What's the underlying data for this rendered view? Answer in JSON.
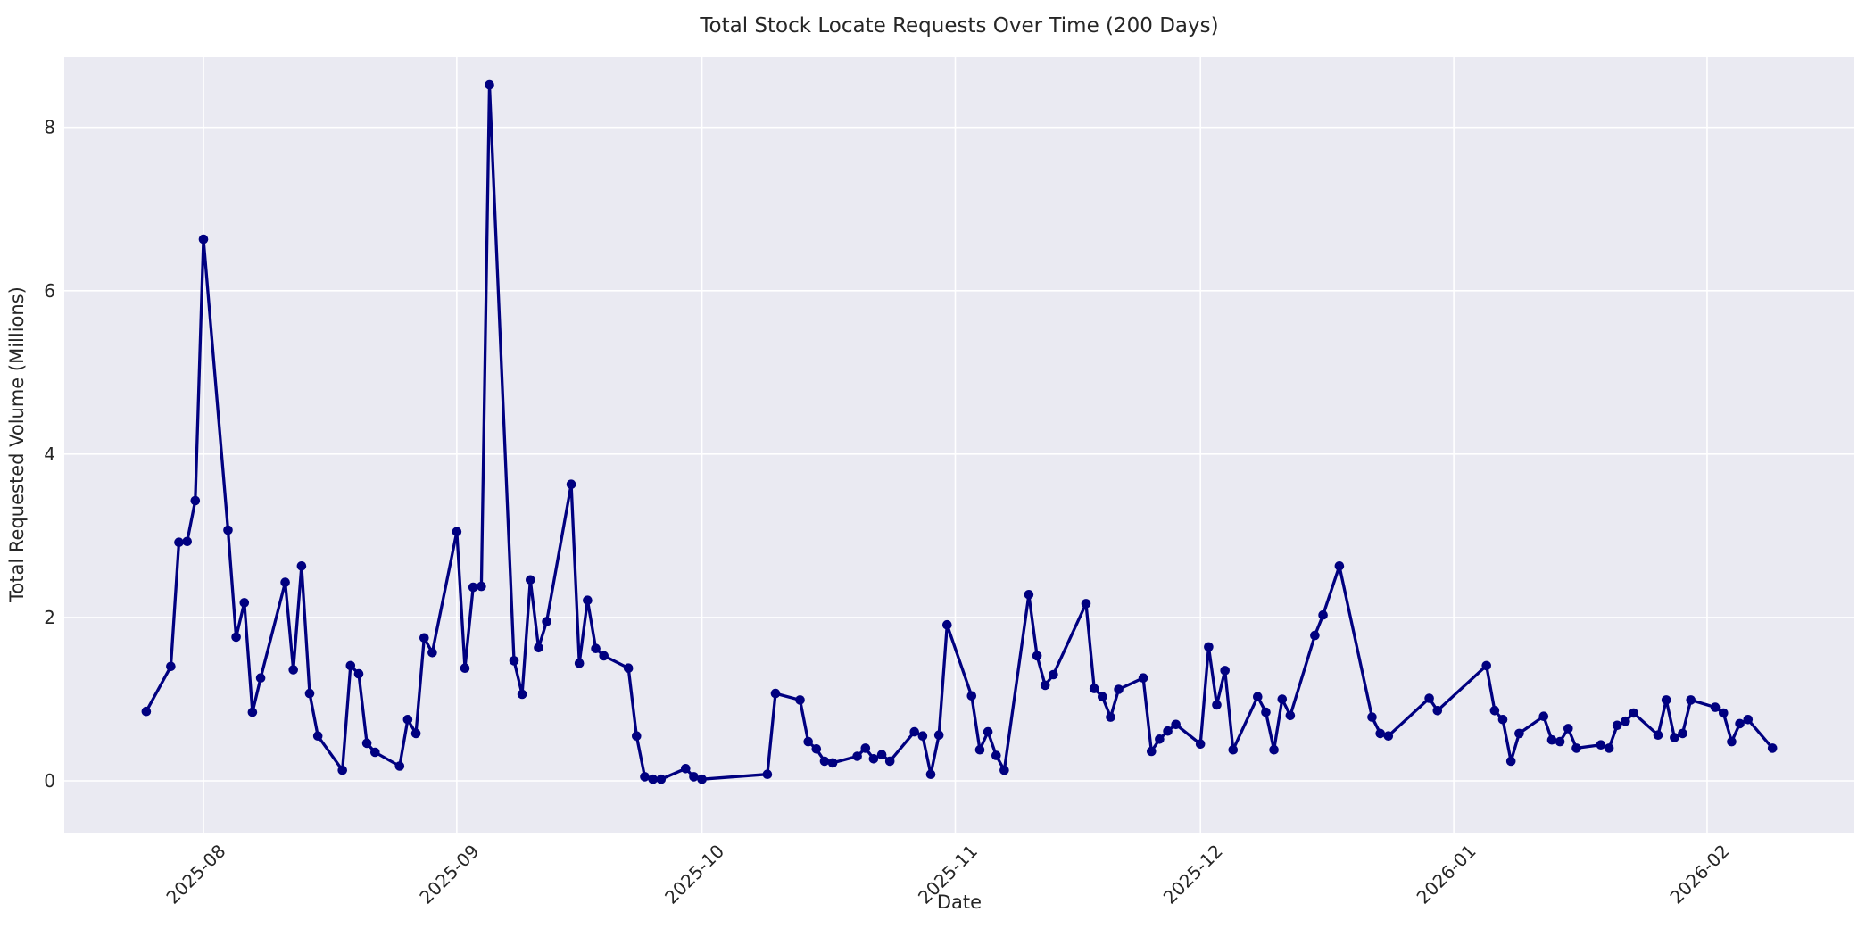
{
  "figure": {
    "title": "Total Stock Locate Requests Over Time (200 Days)"
  },
  "chart_data": {
    "type": "line",
    "title": "Total Stock Locate Requests Over Time (200 Days)",
    "xlabel": "Date",
    "ylabel": "Total Requested Volume (Millions)",
    "legend": false,
    "grid": true,
    "x_axis": {
      "tick_labels": [
        "2025-08",
        "2025-09",
        "2025-10",
        "2025-11",
        "2025-12",
        "2026-01",
        "2026-02"
      ],
      "tick_rotation_deg": 45,
      "range_dates": [
        "2025-07-15",
        "2026-02-20"
      ]
    },
    "y_axis": {
      "ticks": [
        0,
        2,
        4,
        6,
        8
      ],
      "ylim": [
        -0.63,
        8.94
      ]
    },
    "style": {
      "line_color": "#000080",
      "marker": "circle",
      "marker_color": "#000080",
      "plot_bg": "#EAEAF2",
      "grid_color": "#FFFFFF",
      "text_color": "#262626",
      "figure_bg": "#FFFFFF"
    },
    "points": [
      [
        "2025-07-25",
        0.85
      ],
      [
        "2025-07-28",
        1.4
      ],
      [
        "2025-07-29",
        2.92
      ],
      [
        "2025-07-30",
        2.93
      ],
      [
        "2025-07-31",
        3.43
      ],
      [
        "2025-08-01",
        6.63
      ],
      [
        "2025-08-04",
        3.07
      ],
      [
        "2025-08-05",
        1.76
      ],
      [
        "2025-08-06",
        2.18
      ],
      [
        "2025-08-07",
        0.84
      ],
      [
        "2025-08-08",
        1.26
      ],
      [
        "2025-08-11",
        2.43
      ],
      [
        "2025-08-12",
        1.36
      ],
      [
        "2025-08-13",
        2.63
      ],
      [
        "2025-08-14",
        1.07
      ],
      [
        "2025-08-15",
        0.55
      ],
      [
        "2025-08-18",
        0.13
      ],
      [
        "2025-08-19",
        1.41
      ],
      [
        "2025-08-20",
        1.31
      ],
      [
        "2025-08-21",
        0.46
      ],
      [
        "2025-08-22",
        0.35
      ],
      [
        "2025-08-25",
        0.18
      ],
      [
        "2025-08-26",
        0.75
      ],
      [
        "2025-08-27",
        0.58
      ],
      [
        "2025-08-28",
        1.75
      ],
      [
        "2025-08-29",
        1.57
      ],
      [
        "2025-09-01",
        3.05
      ],
      [
        "2025-09-02",
        1.38
      ],
      [
        "2025-09-03",
        2.37
      ],
      [
        "2025-09-04",
        2.38
      ],
      [
        "2025-09-05",
        8.52
      ],
      [
        "2025-09-08",
        1.47
      ],
      [
        "2025-09-09",
        1.06
      ],
      [
        "2025-09-10",
        2.46
      ],
      [
        "2025-09-11",
        1.63
      ],
      [
        "2025-09-12",
        1.95
      ],
      [
        "2025-09-15",
        3.63
      ],
      [
        "2025-09-16",
        1.44
      ],
      [
        "2025-09-17",
        2.21
      ],
      [
        "2025-09-18",
        1.62
      ],
      [
        "2025-09-19",
        1.53
      ],
      [
        "2025-09-22",
        1.38
      ],
      [
        "2025-09-23",
        0.55
      ],
      [
        "2025-09-24",
        0.05
      ],
      [
        "2025-09-25",
        0.02
      ],
      [
        "2025-09-26",
        0.02
      ],
      [
        "2025-09-29",
        0.15
      ],
      [
        "2025-09-30",
        0.05
      ],
      [
        "2025-10-01",
        0.02
      ],
      [
        "2025-10-09",
        0.08
      ],
      [
        "2025-10-10",
        1.07
      ],
      [
        "2025-10-13",
        0.99
      ],
      [
        "2025-10-14",
        0.48
      ],
      [
        "2025-10-15",
        0.39
      ],
      [
        "2025-10-16",
        0.24
      ],
      [
        "2025-10-17",
        0.22
      ],
      [
        "2025-10-20",
        0.3
      ],
      [
        "2025-10-21",
        0.4
      ],
      [
        "2025-10-22",
        0.27
      ],
      [
        "2025-10-23",
        0.32
      ],
      [
        "2025-10-24",
        0.24
      ],
      [
        "2025-10-27",
        0.6
      ],
      [
        "2025-10-28",
        0.55
      ],
      [
        "2025-10-29",
        0.08
      ],
      [
        "2025-10-30",
        0.56
      ],
      [
        "2025-10-31",
        1.91
      ],
      [
        "2025-11-03",
        1.04
      ],
      [
        "2025-11-04",
        0.38
      ],
      [
        "2025-11-05",
        0.6
      ],
      [
        "2025-11-06",
        0.31
      ],
      [
        "2025-11-07",
        0.13
      ],
      [
        "2025-11-10",
        2.28
      ],
      [
        "2025-11-11",
        1.53
      ],
      [
        "2025-11-12",
        1.17
      ],
      [
        "2025-11-13",
        1.3
      ],
      [
        "2025-11-17",
        2.17
      ],
      [
        "2025-11-18",
        1.13
      ],
      [
        "2025-11-19",
        1.03
      ],
      [
        "2025-11-20",
        0.78
      ],
      [
        "2025-11-21",
        1.12
      ],
      [
        "2025-11-24",
        1.26
      ],
      [
        "2025-11-25",
        0.36
      ],
      [
        "2025-11-26",
        0.51
      ],
      [
        "2025-11-27",
        0.61
      ],
      [
        "2025-11-28",
        0.69
      ],
      [
        "2025-12-01",
        0.45
      ],
      [
        "2025-12-02",
        1.64
      ],
      [
        "2025-12-03",
        0.93
      ],
      [
        "2025-12-04",
        1.35
      ],
      [
        "2025-12-05",
        0.38
      ],
      [
        "2025-12-08",
        1.03
      ],
      [
        "2025-12-09",
        0.84
      ],
      [
        "2025-12-10",
        0.38
      ],
      [
        "2025-12-11",
        1.0
      ],
      [
        "2025-12-12",
        0.8
      ],
      [
        "2025-12-15",
        1.78
      ],
      [
        "2025-12-16",
        2.03
      ],
      [
        "2025-12-18",
        2.63
      ],
      [
        "2025-12-22",
        0.78
      ],
      [
        "2025-12-23",
        0.58
      ],
      [
        "2025-12-24",
        0.55
      ],
      [
        "2025-12-29",
        1.01
      ],
      [
        "2025-12-30",
        0.86
      ],
      [
        "2026-01-05",
        1.41
      ],
      [
        "2026-01-06",
        0.86
      ],
      [
        "2026-01-07",
        0.75
      ],
      [
        "2026-01-08",
        0.24
      ],
      [
        "2026-01-09",
        0.58
      ],
      [
        "2026-01-12",
        0.79
      ],
      [
        "2026-01-13",
        0.5
      ],
      [
        "2026-01-14",
        0.48
      ],
      [
        "2026-01-15",
        0.64
      ],
      [
        "2026-01-16",
        0.4
      ],
      [
        "2026-01-19",
        0.44
      ],
      [
        "2026-01-20",
        0.4
      ],
      [
        "2026-01-21",
        0.68
      ],
      [
        "2026-01-22",
        0.73
      ],
      [
        "2026-01-23",
        0.83
      ],
      [
        "2026-01-26",
        0.56
      ],
      [
        "2026-01-27",
        0.99
      ],
      [
        "2026-01-28",
        0.53
      ],
      [
        "2026-01-29",
        0.58
      ],
      [
        "2026-01-30",
        0.99
      ],
      [
        "2026-02-02",
        0.9
      ],
      [
        "2026-02-03",
        0.83
      ],
      [
        "2026-02-04",
        0.48
      ],
      [
        "2026-02-05",
        0.7
      ],
      [
        "2026-02-06",
        0.75
      ],
      [
        "2026-02-09",
        0.4
      ]
    ]
  }
}
